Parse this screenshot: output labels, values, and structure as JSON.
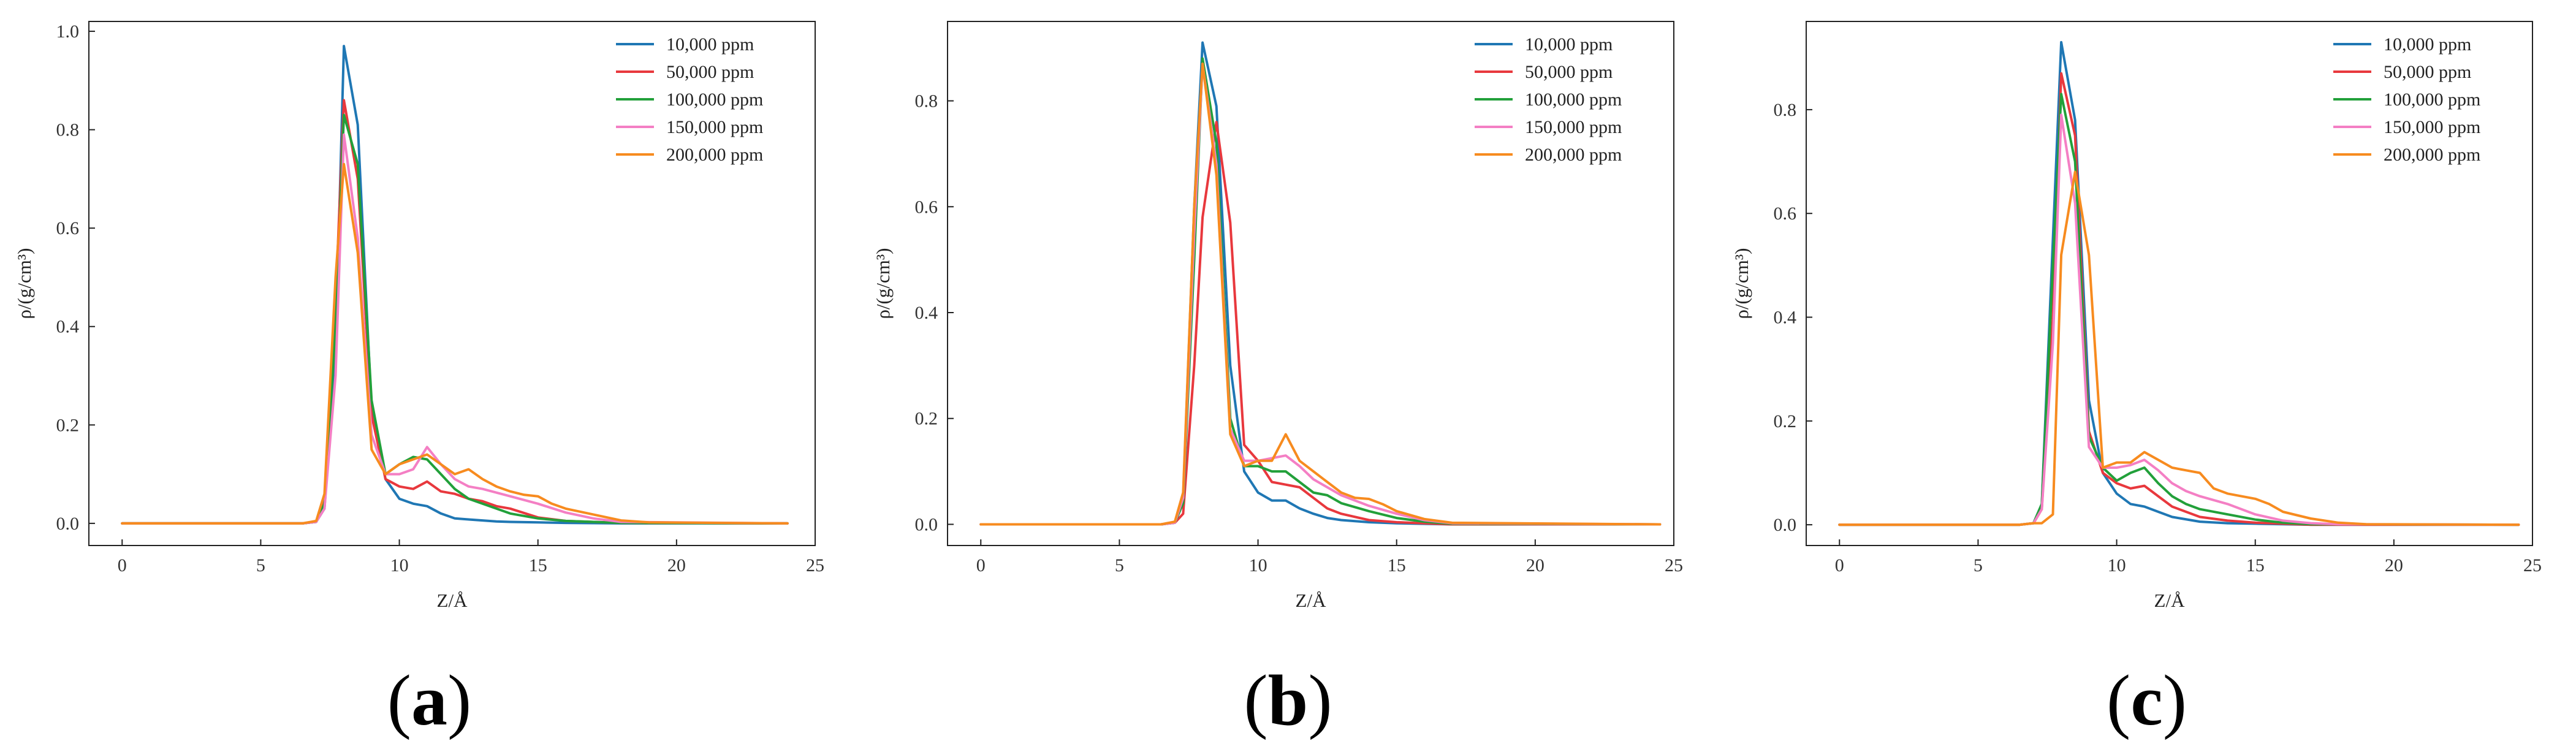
{
  "colors": {
    "s10k": "#1f77b4",
    "s50k": "#e8383d",
    "s100k": "#22a03a",
    "s150k": "#f47fc4",
    "s200k": "#f78b1f"
  },
  "chart_data": [
    {
      "panel_label": "a",
      "type": "line",
      "xlabel": "Z/Å",
      "ylabel": "ρ/(g/cm³)",
      "xlim": [
        -1.2,
        25
      ],
      "ylim": [
        -0.045,
        1.02
      ],
      "x_ticks": [
        0,
        5,
        10,
        15,
        20,
        25
      ],
      "y_ticks": [
        0.0,
        0.2,
        0.4,
        0.6,
        0.8,
        1.0
      ],
      "y_tick_labels": [
        "0.0",
        "0.2",
        "0.4",
        "0.6",
        "0.8",
        "1.0"
      ],
      "legend_position": "top-right",
      "series": [
        {
          "name": "10,000 ppm",
          "color_key": "s10k",
          "x": [
            0,
            6.5,
            7.0,
            7.3,
            7.7,
            8.0,
            8.5,
            9.0,
            9.5,
            10.0,
            10.5,
            11.0,
            11.5,
            12.0,
            12.5,
            13.0,
            13.5,
            14.0,
            15.0,
            16.0,
            18.0,
            24.0
          ],
          "y": [
            0,
            0,
            0.003,
            0.03,
            0.35,
            0.97,
            0.81,
            0.23,
            0.09,
            0.05,
            0.04,
            0.035,
            0.02,
            0.01,
            0.008,
            0.006,
            0.004,
            0.003,
            0.002,
            0.001,
            0,
            0
          ]
        },
        {
          "name": "50,000 ppm",
          "color_key": "s50k",
          "x": [
            0,
            6.5,
            7.0,
            7.3,
            7.7,
            8.0,
            8.5,
            9.0,
            9.5,
            10.0,
            10.5,
            11.0,
            11.5,
            12.0,
            12.5,
            13.0,
            13.5,
            14.0,
            15.0,
            16.0,
            18.0,
            24.0
          ],
          "y": [
            0,
            0,
            0.003,
            0.05,
            0.45,
            0.86,
            0.7,
            0.22,
            0.09,
            0.075,
            0.07,
            0.085,
            0.065,
            0.06,
            0.05,
            0.045,
            0.035,
            0.03,
            0.012,
            0.005,
            0.001,
            0
          ]
        },
        {
          "name": "100,000 ppm",
          "color_key": "s100k",
          "x": [
            0,
            6.5,
            7.0,
            7.3,
            7.7,
            8.0,
            8.5,
            9.0,
            9.5,
            10.0,
            10.5,
            11.0,
            11.5,
            12.0,
            12.5,
            13.0,
            13.5,
            14.0,
            15.0,
            16.0,
            18.0,
            24.0
          ],
          "y": [
            0,
            0,
            0.003,
            0.04,
            0.4,
            0.83,
            0.73,
            0.25,
            0.1,
            0.12,
            0.135,
            0.13,
            0.1,
            0.07,
            0.05,
            0.04,
            0.03,
            0.02,
            0.01,
            0.005,
            0.001,
            0
          ]
        },
        {
          "name": "150,000 ppm",
          "color_key": "s150k",
          "x": [
            0,
            6.5,
            7.0,
            7.3,
            7.7,
            8.0,
            8.5,
            9.0,
            9.5,
            10.0,
            10.5,
            11.0,
            11.5,
            12.0,
            12.5,
            13.0,
            14.0,
            15.0,
            16.0,
            17.0,
            18.0,
            24.0
          ],
          "y": [
            0,
            0,
            0.003,
            0.03,
            0.3,
            0.79,
            0.58,
            0.18,
            0.1,
            0.1,
            0.11,
            0.155,
            0.12,
            0.09,
            0.075,
            0.07,
            0.055,
            0.04,
            0.022,
            0.01,
            0.003,
            0
          ]
        },
        {
          "name": "200,000 ppm",
          "color_key": "s200k",
          "x": [
            0,
            6.5,
            7.0,
            7.3,
            7.7,
            8.0,
            8.5,
            9.0,
            9.5,
            10.0,
            10.5,
            11.0,
            11.5,
            12.0,
            12.5,
            13.0,
            13.5,
            14.0,
            14.5,
            15.0,
            15.5,
            16.0,
            17.0,
            18.0,
            19.0,
            24.0
          ],
          "y": [
            0,
            0,
            0.005,
            0.06,
            0.5,
            0.73,
            0.55,
            0.15,
            0.1,
            0.12,
            0.13,
            0.14,
            0.12,
            0.1,
            0.11,
            0.09,
            0.075,
            0.065,
            0.058,
            0.055,
            0.04,
            0.03,
            0.018,
            0.006,
            0.002,
            0
          ]
        }
      ]
    },
    {
      "panel_label": "b",
      "type": "line",
      "xlabel": "Z/Å",
      "ylabel": "ρ/(g/cm³)",
      "xlim": [
        -1.2,
        25
      ],
      "ylim": [
        -0.04,
        0.95
      ],
      "x_ticks": [
        0,
        5,
        10,
        15,
        20,
        25
      ],
      "y_ticks": [
        0.0,
        0.2,
        0.4,
        0.6,
        0.8
      ],
      "y_tick_labels": [
        "0.0",
        "0.2",
        "0.4",
        "0.6",
        "0.8"
      ],
      "legend_position": "top-right",
      "series": [
        {
          "name": "10,000 ppm",
          "color_key": "s10k",
          "x": [
            0,
            6.5,
            7.0,
            7.3,
            7.7,
            8.0,
            8.5,
            9.0,
            9.5,
            10.0,
            10.5,
            11.0,
            11.5,
            12.0,
            12.5,
            13.0,
            14.0,
            15.0,
            16.0,
            17.0,
            24.5
          ],
          "y": [
            0,
            0,
            0.003,
            0.05,
            0.6,
            0.91,
            0.79,
            0.3,
            0.1,
            0.06,
            0.045,
            0.045,
            0.03,
            0.02,
            0.012,
            0.008,
            0.004,
            0.002,
            0.001,
            0,
            0
          ]
        },
        {
          "name": "50,000 ppm",
          "color_key": "s50k",
          "x": [
            0,
            6.5,
            7.0,
            7.3,
            7.7,
            8.0,
            8.5,
            9.0,
            9.5,
            10.0,
            10.5,
            11.0,
            11.5,
            12.0,
            12.5,
            13.0,
            14.0,
            15.0,
            16.0,
            17.0,
            24.5
          ],
          "y": [
            0,
            0,
            0.003,
            0.02,
            0.3,
            0.58,
            0.76,
            0.57,
            0.15,
            0.12,
            0.08,
            0.075,
            0.07,
            0.05,
            0.03,
            0.02,
            0.008,
            0.004,
            0.002,
            0,
            0
          ]
        },
        {
          "name": "100,000 ppm",
          "color_key": "s100k",
          "x": [
            0,
            6.5,
            7.0,
            7.3,
            7.7,
            8.0,
            8.5,
            9.0,
            9.5,
            10.0,
            10.5,
            11.0,
            11.5,
            12.0,
            12.5,
            13.0,
            14.0,
            15.0,
            16.0,
            17.0,
            24.5
          ],
          "y": [
            0,
            0,
            0.003,
            0.04,
            0.5,
            0.88,
            0.72,
            0.2,
            0.11,
            0.11,
            0.1,
            0.1,
            0.08,
            0.06,
            0.055,
            0.04,
            0.025,
            0.012,
            0.005,
            0.001,
            0
          ]
        },
        {
          "name": "150,000 ppm",
          "color_key": "s150k",
          "x": [
            0,
            6.5,
            7.0,
            7.3,
            7.7,
            8.0,
            8.5,
            9.0,
            9.5,
            10.0,
            10.5,
            11.0,
            11.5,
            12.0,
            12.5,
            13.0,
            14.0,
            15.0,
            16.0,
            17.0,
            24.5
          ],
          "y": [
            0,
            0,
            0.003,
            0.05,
            0.55,
            0.87,
            0.68,
            0.18,
            0.12,
            0.12,
            0.125,
            0.13,
            0.11,
            0.085,
            0.07,
            0.055,
            0.035,
            0.02,
            0.008,
            0.002,
            0
          ]
        },
        {
          "name": "200,000 ppm",
          "color_key": "s200k",
          "x": [
            0,
            6.5,
            7.0,
            7.3,
            7.7,
            8.0,
            8.5,
            9.0,
            9.5,
            10.0,
            10.5,
            11.0,
            11.5,
            12.0,
            12.5,
            13.0,
            13.5,
            14.0,
            14.5,
            15.0,
            16.0,
            17.0,
            24.5
          ],
          "y": [
            0,
            0,
            0.005,
            0.06,
            0.6,
            0.87,
            0.66,
            0.17,
            0.11,
            0.12,
            0.12,
            0.17,
            0.12,
            0.1,
            0.08,
            0.06,
            0.05,
            0.048,
            0.038,
            0.025,
            0.01,
            0.003,
            0
          ]
        }
      ]
    },
    {
      "panel_label": "c",
      "type": "line",
      "xlabel": "Z/Å",
      "ylabel": "ρ/(g/cm³)",
      "xlim": [
        -1.2,
        25
      ],
      "ylim": [
        -0.04,
        0.97
      ],
      "x_ticks": [
        0,
        5,
        10,
        15,
        20,
        25
      ],
      "y_ticks": [
        0.0,
        0.2,
        0.4,
        0.6,
        0.8
      ],
      "y_tick_labels": [
        "0.0",
        "0.2",
        "0.4",
        "0.6",
        "0.8"
      ],
      "legend_position": "top-right",
      "series": [
        {
          "name": "10,000 ppm",
          "color_key": "s10k",
          "x": [
            0,
            6.5,
            7.0,
            7.3,
            7.7,
            8.0,
            8.5,
            9.0,
            9.5,
            10.0,
            10.5,
            11.0,
            11.5,
            12.0,
            13.0,
            14.0,
            15.0,
            16.0,
            17.0,
            24.5
          ],
          "y": [
            0,
            0,
            0.003,
            0.04,
            0.55,
            0.93,
            0.78,
            0.24,
            0.1,
            0.06,
            0.04,
            0.035,
            0.025,
            0.015,
            0.006,
            0.003,
            0.002,
            0.001,
            0,
            0
          ]
        },
        {
          "name": "50,000 ppm",
          "color_key": "s50k",
          "x": [
            0,
            6.5,
            7.0,
            7.3,
            7.7,
            8.0,
            8.5,
            9.0,
            9.5,
            10.0,
            10.5,
            11.0,
            11.5,
            12.0,
            13.0,
            14.0,
            15.0,
            16.0,
            17.0,
            24.5
          ],
          "y": [
            0,
            0,
            0.003,
            0.03,
            0.4,
            0.87,
            0.75,
            0.18,
            0.1,
            0.08,
            0.07,
            0.075,
            0.055,
            0.035,
            0.015,
            0.008,
            0.004,
            0.002,
            0,
            0
          ]
        },
        {
          "name": "100,000 ppm",
          "color_key": "s100k",
          "x": [
            0,
            6.5,
            7.0,
            7.3,
            7.7,
            8.0,
            8.5,
            9.0,
            9.5,
            10.0,
            10.5,
            11.0,
            11.5,
            12.0,
            12.5,
            13.0,
            14.0,
            15.0,
            16.0,
            17.0,
            24.5
          ],
          "y": [
            0,
            0,
            0.003,
            0.04,
            0.5,
            0.83,
            0.7,
            0.17,
            0.11,
            0.085,
            0.1,
            0.11,
            0.08,
            0.055,
            0.04,
            0.03,
            0.02,
            0.01,
            0.004,
            0.001,
            0
          ]
        },
        {
          "name": "150,000 ppm",
          "color_key": "s150k",
          "x": [
            0,
            6.5,
            7.0,
            7.3,
            7.7,
            8.0,
            8.5,
            9.0,
            9.5,
            10.0,
            10.5,
            11.0,
            11.5,
            12.0,
            12.5,
            13.0,
            14.0,
            15.0,
            16.0,
            17.0,
            18.0,
            24.5
          ],
          "y": [
            0,
            0,
            0.003,
            0.03,
            0.35,
            0.79,
            0.62,
            0.15,
            0.11,
            0.11,
            0.115,
            0.125,
            0.105,
            0.08,
            0.065,
            0.055,
            0.04,
            0.02,
            0.008,
            0.003,
            0.001,
            0
          ]
        },
        {
          "name": "200,000 ppm",
          "color_key": "s200k",
          "x": [
            0,
            6.5,
            7.0,
            7.3,
            7.7,
            8.0,
            8.5,
            9.0,
            9.5,
            10.0,
            10.5,
            11.0,
            11.5,
            12.0,
            12.5,
            13.0,
            13.5,
            14.0,
            15.0,
            15.5,
            16.0,
            17.0,
            18.0,
            19.0,
            24.5
          ],
          "y": [
            0,
            0,
            0.003,
            0.003,
            0.02,
            0.52,
            0.68,
            0.52,
            0.11,
            0.12,
            0.12,
            0.14,
            0.125,
            0.11,
            0.105,
            0.1,
            0.07,
            0.06,
            0.05,
            0.04,
            0.025,
            0.012,
            0.004,
            0.001,
            0
          ]
        }
      ]
    }
  ]
}
